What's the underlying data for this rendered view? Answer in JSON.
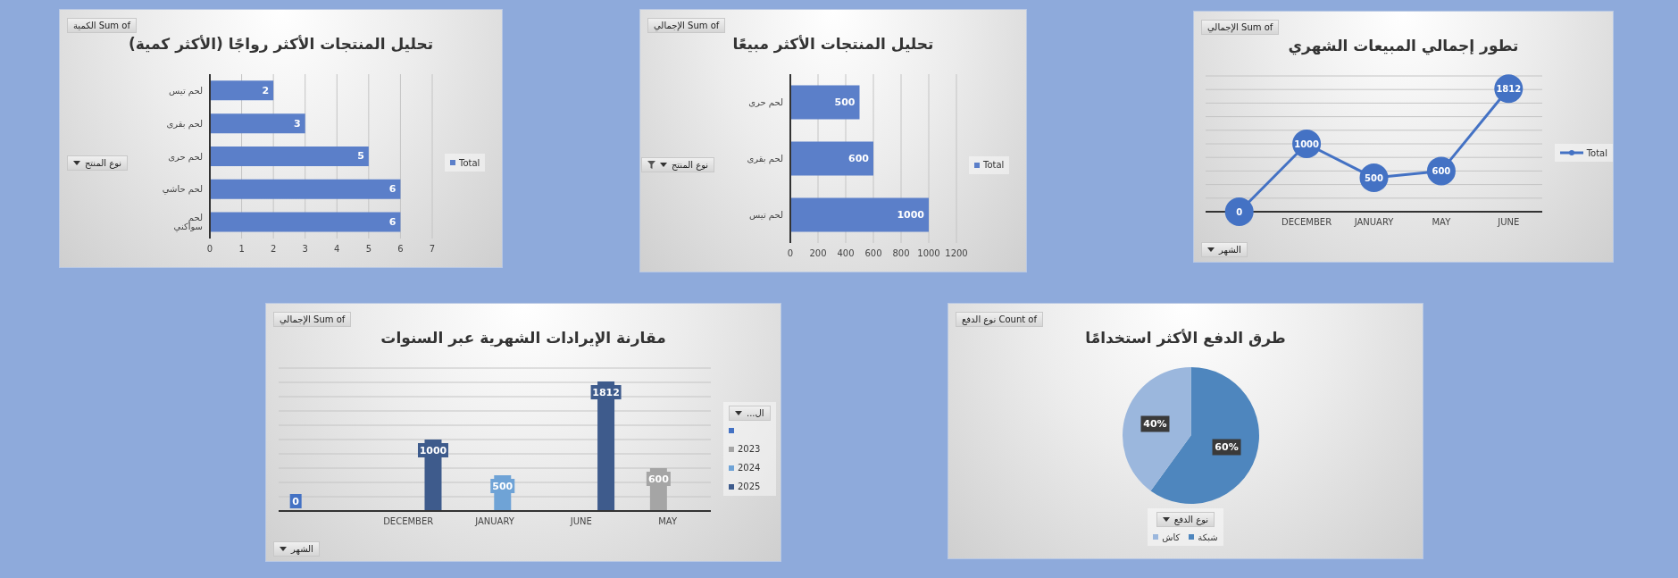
{
  "chart_data": [
    {
      "type": "bar",
      "orientation": "horizontal",
      "title": "تحليل المنتجات الأكثر رواجًا (الأكثر كمية)",
      "ylabel": "نوع المنتج",
      "annotations": [
        "Sum of الكمية"
      ],
      "categories": [
        "لحم تيس",
        "لحم بقرى",
        "لحم حرى",
        "لحم حاشي",
        "لحم سواكني"
      ],
      "series": [
        {
          "name": "Total",
          "color": "#5b7fc9",
          "values": [
            2,
            3,
            5,
            6,
            6
          ]
        }
      ],
      "xlim": [
        0,
        7
      ],
      "xticks": [
        0,
        1,
        2,
        3,
        4,
        5,
        6,
        7
      ],
      "grid": "x",
      "legend": "right",
      "data_labels": true
    },
    {
      "type": "bar",
      "orientation": "horizontal",
      "title": "تحليل المنتجات الأكثر مبيعًا",
      "ylabel": "نوع المنتج",
      "annotations": [
        "Sum of الإجمالي"
      ],
      "categories": [
        "لحم حرى",
        "لحم بقرى",
        "لحم تيس"
      ],
      "series": [
        {
          "name": "Total",
          "color": "#5b7fc9",
          "values": [
            500,
            600,
            1000
          ]
        }
      ],
      "xlim": [
        0,
        1200
      ],
      "xticks": [
        0,
        200,
        400,
        600,
        800,
        1000,
        1200
      ],
      "grid": "x",
      "legend": "right",
      "data_labels": true
    },
    {
      "type": "line",
      "title": "تطور إجمالي المبيعات الشهري",
      "xlabel": "الشهر",
      "annotations": [
        "Sum of الإجمالي"
      ],
      "categories": [
        null,
        "DECEMBER",
        "JANUARY",
        "MAY",
        "JUNE"
      ],
      "series": [
        {
          "name": "Total",
          "color": "#4472c4",
          "values": [
            0,
            1000,
            500,
            600,
            1812
          ]
        }
      ],
      "tick_labels": "x",
      "grid": "y",
      "legend": "right",
      "marker": "circle",
      "line_style": "solid",
      "data_labels": true
    },
    {
      "type": "bar",
      "title": "مقارنة الإيرادات الشهرية عبر السنوات",
      "xlabel": "الشهر",
      "legend_title": "ال...",
      "annotations": [
        "Sum of الإجمالي"
      ],
      "categories": [
        null,
        "DECEMBER",
        "JANUARY",
        "JUNE",
        "MAY"
      ],
      "series": [
        {
          "color": "#4472c4",
          "values": [
            0,
            null,
            null,
            null,
            null
          ]
        },
        {
          "name": "2023",
          "color": "#a5a5a5",
          "values": [
            null,
            null,
            null,
            null,
            600
          ]
        },
        {
          "name": "2024",
          "color": "#6fa3d6",
          "values": [
            null,
            null,
            500,
            null,
            null
          ]
        },
        {
          "name": "2025",
          "color": "#3e5b8c",
          "values": [
            null,
            1000,
            null,
            1812,
            null
          ]
        }
      ],
      "tick_labels": "x",
      "grid": "y",
      "legend": "right",
      "data_labels": true
    },
    {
      "type": "pie",
      "title": "طرق الدفع الأكثر استخدامًا",
      "legend_title": "نوع الدفع",
      "annotations": [
        "Count of نوع الدفع"
      ],
      "categories": [
        "شبكة",
        "كاش"
      ],
      "values": [
        60,
        40
      ],
      "colors": [
        "#4e86be",
        "#9bb7dd"
      ],
      "value_labels": [
        "60%",
        "40%"
      ],
      "legend": "bottom"
    }
  ]
}
